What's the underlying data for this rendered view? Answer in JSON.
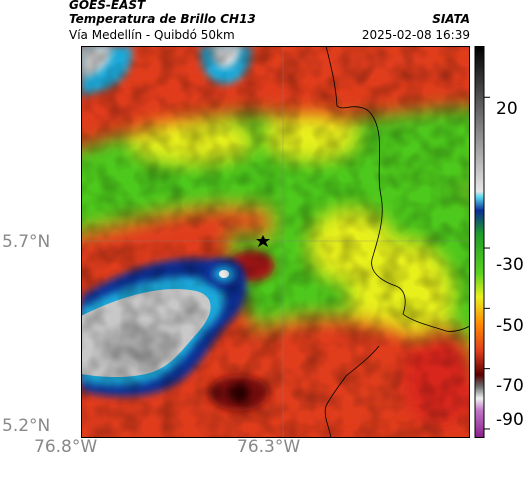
{
  "header": {
    "satellite": "GOES-EAST",
    "product": "Temperatura de Brillo CH13",
    "agency": "SIATA",
    "route": "Vía Medellín - Quibdó 50km",
    "datetime": "2025-02-08 16:39"
  },
  "map": {
    "lat_labels": [
      "5.7°N",
      "5.2°N"
    ],
    "lon_labels": [
      "76.8°W",
      "76.3°W"
    ],
    "marker": "star-icon"
  },
  "colorbar": {
    "tick_labels": [
      "20",
      "-30",
      "-50",
      "-70",
      "-90"
    ],
    "range": [
      -93,
      37
    ],
    "tick_values": [
      20,
      -30,
      -50,
      -70,
      -90
    ]
  },
  "colors": {
    "red": "#e03c1c",
    "green": "#4ec81e",
    "yellow": "#e8f01e",
    "blue": "#0a2e94",
    "cyan": "#1aa8d8",
    "gray": "#c8c8c8"
  }
}
